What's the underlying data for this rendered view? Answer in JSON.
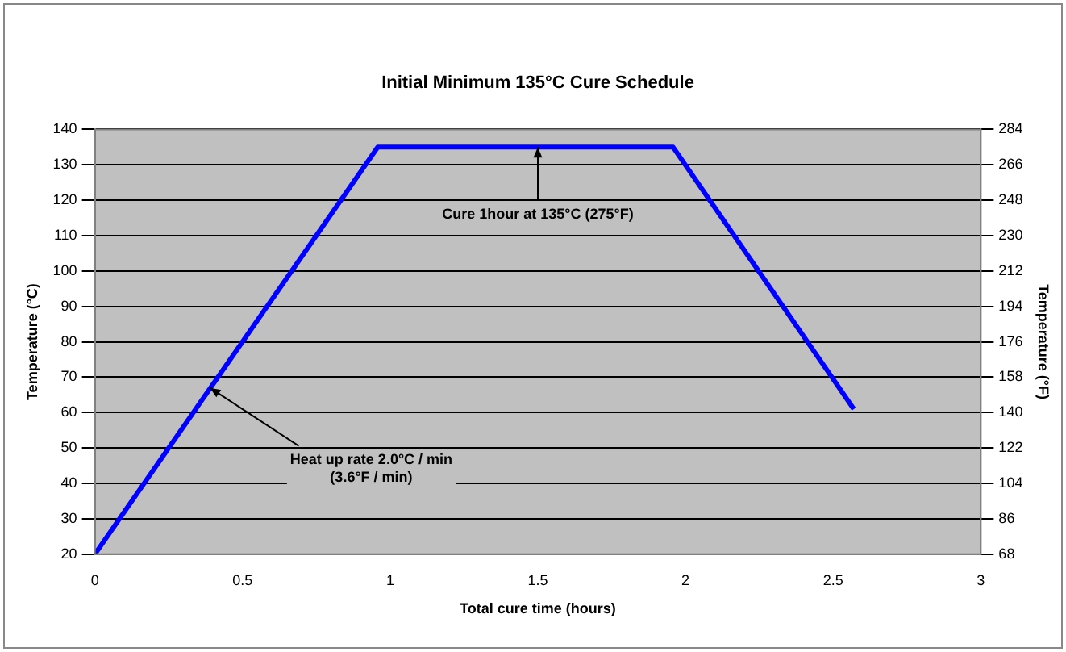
{
  "chart_data": {
    "type": "line",
    "title": "Initial Minimum 135°C Cure Schedule",
    "xlabel": "Total cure time (hours)",
    "ylabel": "Temperature (°C)",
    "y2label": "Temperature (°F)",
    "x": [
      0,
      0.958,
      1.958,
      2.57
    ],
    "series": [
      {
        "color": "#0000ff",
        "values": [
          20,
          135,
          135,
          61
        ]
      }
    ],
    "xlim": [
      0,
      3
    ],
    "xticks": [
      0,
      0.5,
      1,
      1.5,
      2,
      2.5,
      3
    ],
    "ylim": [
      20,
      140
    ],
    "yticks": [
      20,
      30,
      40,
      50,
      60,
      70,
      80,
      90,
      100,
      110,
      120,
      130,
      140
    ],
    "y2lim": [
      68,
      284
    ],
    "y2ticks": [
      68,
      86,
      104,
      122,
      140,
      158,
      176,
      194,
      212,
      230,
      248,
      266,
      284
    ],
    "grid": "y",
    "legend": false,
    "marker": "none",
    "line_style": "solid",
    "annotations": [
      {
        "text": "Cure 1hour at 135°C (275°F)",
        "x": 1.5,
        "y": 135
      },
      {
        "text": "Heat up rate 2.0°C / min\n(3.6°F / min)",
        "x": 0.39,
        "y": 67
      }
    ]
  }
}
